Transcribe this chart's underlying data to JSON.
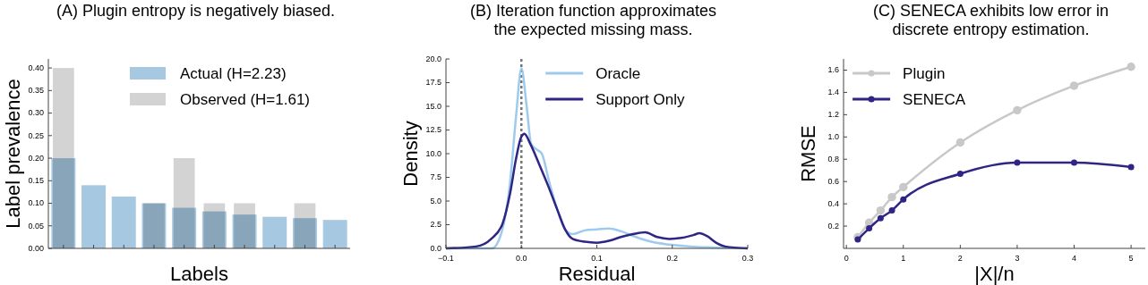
{
  "chart_data": [
    {
      "type": "bar",
      "title": "(A) Plugin entropy is negatively biased.",
      "xlabel": "Labels",
      "ylabel": "Label prevalence",
      "categories": [
        null,
        null,
        null,
        null,
        null,
        null,
        null,
        null,
        null,
        null
      ],
      "series": [
        {
          "name": "Actual (H=2.23)",
          "color": "#a6c8e0",
          "values": [
            0.2,
            0.14,
            0.115,
            0.1,
            0.09,
            0.082,
            0.075,
            0.07,
            0.067,
            0.063
          ]
        },
        {
          "name": "Observed (H=1.61)",
          "color": "#d3d3d3",
          "values": [
            0.4,
            0,
            0,
            0.1,
            0.2,
            0.1,
            0.1,
            0,
            0.1,
            0
          ]
        }
      ],
      "ylim": [
        0,
        0.42
      ],
      "yticks": [
        {
          "value": 0,
          "label": "0.00"
        },
        0.05,
        {
          "value": 0.1,
          "label": "0.10"
        },
        0.15,
        {
          "value": 0.2,
          "label": "0.20"
        },
        0.25,
        {
          "value": 0.3,
          "label": "0.30"
        },
        0.35,
        {
          "value": 0.4,
          "label": "0.40"
        }
      ],
      "tick_labels": "y",
      "legend": "top right"
    },
    {
      "type": "line",
      "title": "(B) Iteration function approximates\nthe expected missing mass.",
      "xlabel": "Residual",
      "ylabel": "Density",
      "series": [
        {
          "name": "Oracle",
          "color": "#9ecbec",
          "x": [
            -0.1,
            -0.039,
            -0.027,
            -0.015,
            -0.007,
            0,
            0.007,
            0.013,
            0.021,
            0.027,
            0.037,
            0.048,
            0.058,
            0.068,
            0.084,
            0.1,
            0.116,
            0.132,
            0.152,
            0.172,
            0.196,
            0.224,
            0.251,
            0.3
          ],
          "values": [
            0,
            0,
            1.5,
            7,
            14,
            19,
            15,
            11,
            10.4,
            10,
            7,
            4,
            2,
            1.5,
            1.9,
            2,
            2.1,
            1.8,
            1.2,
            0.7,
            0.4,
            0.2,
            0.1,
            0
          ]
        },
        {
          "name": "Support Only",
          "color": "#2e2585",
          "x": [
            -0.1,
            -0.06,
            -0.04,
            -0.025,
            -0.015,
            -0.007,
            0,
            0.004,
            0.012,
            0.024,
            0.036,
            0.048,
            0.058,
            0.068,
            0.084,
            0.1,
            0.116,
            0.132,
            0.148,
            0.164,
            0.18,
            0.196,
            0.212,
            0.228,
            0.236,
            0.246,
            0.258,
            0.27,
            0.3
          ],
          "values": [
            0,
            0.2,
            1,
            2.6,
            5.8,
            9.5,
            11.8,
            12.1,
            11,
            8.8,
            6.5,
            4,
            2,
            1,
            0.7,
            0.6,
            0.8,
            1.2,
            1.5,
            1.7,
            1.2,
            1,
            1.1,
            1.4,
            1.6,
            1.3,
            0.6,
            0.2,
            0
          ]
        }
      ],
      "ref_lines": [
        {
          "axis": "x",
          "value": 0,
          "color": "#777777",
          "line_style": "dotted"
        }
      ],
      "xlim": [
        -0.1,
        0.3
      ],
      "xticks": [
        {
          "value": -0.1,
          "label": "−0.1"
        },
        {
          "value": 0,
          "label": "0.0"
        },
        0.1,
        0.2,
        0.3
      ],
      "ylim": [
        0,
        20
      ],
      "yticks": [
        {
          "value": 0,
          "label": "0.0"
        },
        2.5,
        {
          "value": 5,
          "label": "5.0"
        },
        7.5,
        {
          "value": 10,
          "label": "10.0"
        },
        12.5,
        {
          "value": 15,
          "label": "15.0"
        },
        17.5,
        {
          "value": 20,
          "label": "20.0"
        }
      ],
      "legend": "top right",
      "marker": "none"
    },
    {
      "type": "line",
      "title": "(C) SENECA exhibits low error in\ndiscrete entropy estimation.",
      "xlabel": "|X|/n",
      "ylabel": "RMSE",
      "series": [
        {
          "name": "Plugin",
          "color": "#c8c8c8",
          "x": [
            0.2,
            0.4,
            0.6,
            0.8,
            1,
            2,
            3,
            4,
            5
          ],
          "values": [
            0.1,
            0.23,
            0.34,
            0.46,
            0.55,
            0.95,
            1.24,
            1.46,
            1.63
          ]
        },
        {
          "name": "SENECA",
          "color": "#2e2585",
          "x": [
            0.2,
            0.4,
            0.6,
            0.8,
            1,
            2,
            3,
            4,
            5
          ],
          "values": [
            0.08,
            0.18,
            0.27,
            0.34,
            0.44,
            0.67,
            0.77,
            0.77,
            0.73
          ]
        }
      ],
      "xlim": [
        -0.05,
        5.25
      ],
      "xticks": [
        0,
        1,
        2,
        3,
        4,
        5
      ],
      "ylim": [
        0,
        1.7
      ],
      "yticks": [
        0.2,
        0.4,
        0.6,
        0.8,
        {
          "value": 1,
          "label": "1.0"
        },
        1.2,
        1.4,
        1.6
      ],
      "legend": "top left",
      "marker": "circle"
    }
  ]
}
